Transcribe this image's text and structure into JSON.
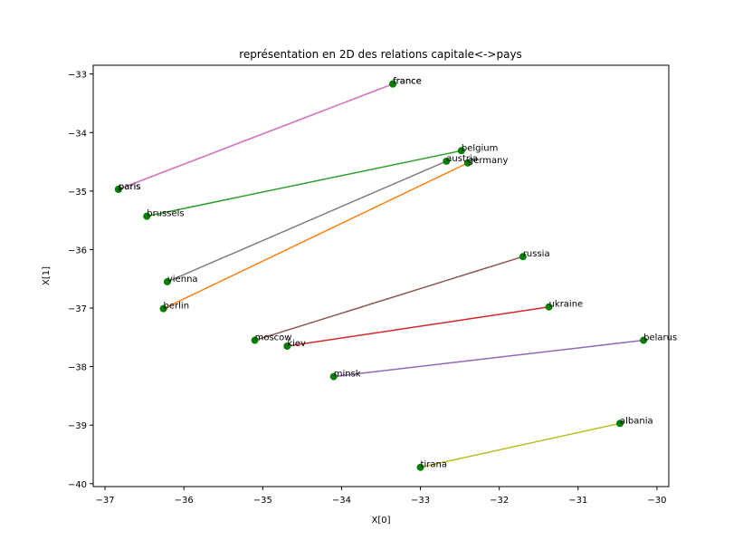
{
  "chart_data": {
    "type": "scatter",
    "title": "représentation en 2D des relations capitale<->pays",
    "xlabel": "X[0]",
    "ylabel": "X[1]",
    "xlim": [
      -37.15,
      -29.85
    ],
    "ylim": [
      -40.05,
      -32.85
    ],
    "xticks": [
      -37,
      -36,
      -35,
      -34,
      -33,
      -32,
      -31,
      -30
    ],
    "yticks": [
      -33,
      -34,
      -35,
      -36,
      -37,
      -38,
      -39,
      -40
    ],
    "xtick_labels": [
      "−37",
      "−36",
      "−35",
      "−34",
      "−33",
      "−32",
      "−31",
      "−30"
    ],
    "ytick_labels": [
      "−33",
      "−34",
      "−35",
      "−36",
      "−37",
      "−38",
      "−39",
      "−40"
    ],
    "grid": false,
    "marker_color": "#008000",
    "points": [
      {
        "label": "france",
        "x": -33.35,
        "y": -33.17
      },
      {
        "label": "france",
        "x": -33.35,
        "y": -33.17
      },
      {
        "label": "paris",
        "x": -36.83,
        "y": -34.97
      },
      {
        "label": "paris",
        "x": -36.83,
        "y": -34.97
      },
      {
        "label": "belgium",
        "x": -32.48,
        "y": -34.31
      },
      {
        "label": "austria",
        "x": -32.67,
        "y": -34.49
      },
      {
        "label": "germany",
        "x": -32.4,
        "y": -34.52
      },
      {
        "label": "brussels",
        "x": -36.47,
        "y": -35.43
      },
      {
        "label": "russia",
        "x": -31.7,
        "y": -36.12
      },
      {
        "label": "vienna",
        "x": -36.21,
        "y": -36.55
      },
      {
        "label": "berlin",
        "x": -36.26,
        "y": -37.01
      },
      {
        "label": "ukraine",
        "x": -31.37,
        "y": -36.98
      },
      {
        "label": "moscow",
        "x": -35.1,
        "y": -37.55
      },
      {
        "label": "kiev",
        "x": -34.69,
        "y": -37.65
      },
      {
        "label": "belarus",
        "x": -30.17,
        "y": -37.55
      },
      {
        "label": "minsk",
        "x": -34.1,
        "y": -38.17
      },
      {
        "label": "albania",
        "x": -30.47,
        "y": -38.97
      },
      {
        "label": "tirana",
        "x": -33.0,
        "y": -39.72
      }
    ],
    "pairs": [
      {
        "from": [
          -36.83,
          -34.97
        ],
        "to": [
          -33.35,
          -33.17
        ],
        "color": "#1f77b4"
      },
      {
        "from": [
          -36.26,
          -37.01
        ],
        "to": [
          -32.4,
          -34.52
        ],
        "color": "#ff7f0e"
      },
      {
        "from": [
          -36.47,
          -35.43
        ],
        "to": [
          -32.48,
          -34.31
        ],
        "color": "#2ca02c"
      },
      {
        "from": [
          -34.69,
          -37.65
        ],
        "to": [
          -31.37,
          -36.98
        ],
        "color": "#d62728"
      },
      {
        "from": [
          -34.1,
          -38.17
        ],
        "to": [
          -30.17,
          -37.55
        ],
        "color": "#9467bd"
      },
      {
        "from": [
          -35.1,
          -37.55
        ],
        "to": [
          -31.7,
          -36.12
        ],
        "color": "#8c564b"
      },
      {
        "from": [
          -36.83,
          -34.97
        ],
        "to": [
          -33.35,
          -33.17
        ],
        "color": "#e377c2"
      },
      {
        "from": [
          -36.21,
          -36.55
        ],
        "to": [
          -32.67,
          -34.49
        ],
        "color": "#7f7f7f"
      },
      {
        "from": [
          -33.0,
          -39.72
        ],
        "to": [
          -30.47,
          -38.97
        ],
        "color": "#bcbd22"
      }
    ]
  }
}
